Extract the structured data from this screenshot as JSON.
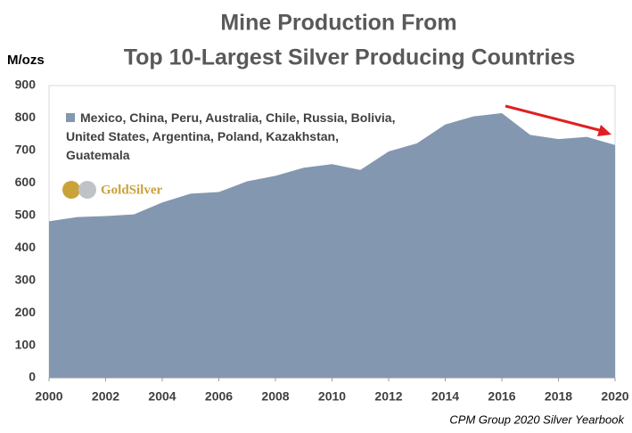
{
  "chart_data": {
    "type": "area",
    "title": [
      "Mine Production From",
      "Top 10-Largest Silver Producing Countries"
    ],
    "y_label": "M/ozs",
    "source": "CPM Group 2020 Silver Yearbook",
    "logo": "GoldSilver",
    "x": [
      2000,
      2001,
      2002,
      2003,
      2004,
      2005,
      2006,
      2007,
      2008,
      2009,
      2010,
      2011,
      2012,
      2013,
      2014,
      2015,
      2016,
      2017,
      2018,
      2019,
      2020
    ],
    "series": [
      {
        "name": "Mexico, China, Peru, Australia, Chile, Russia, Bolivia, United States, Argentina, Poland, Kazakhstan, Guatemala",
        "color": "#8497b0",
        "values": [
          482,
          495,
          498,
          503,
          540,
          567,
          572,
          605,
          622,
          647,
          658,
          640,
          697,
          722,
          780,
          805,
          815,
          748,
          735,
          742,
          717
        ]
      }
    ],
    "xlim": [
      2000,
      2020
    ],
    "xticks": [
      2000,
      2002,
      2004,
      2006,
      2008,
      2010,
      2012,
      2014,
      2016,
      2018,
      2020
    ],
    "ylim": [
      0,
      900
    ],
    "yticks": [
      0,
      100,
      200,
      300,
      400,
      500,
      600,
      700,
      800,
      900
    ],
    "grid": false
  }
}
